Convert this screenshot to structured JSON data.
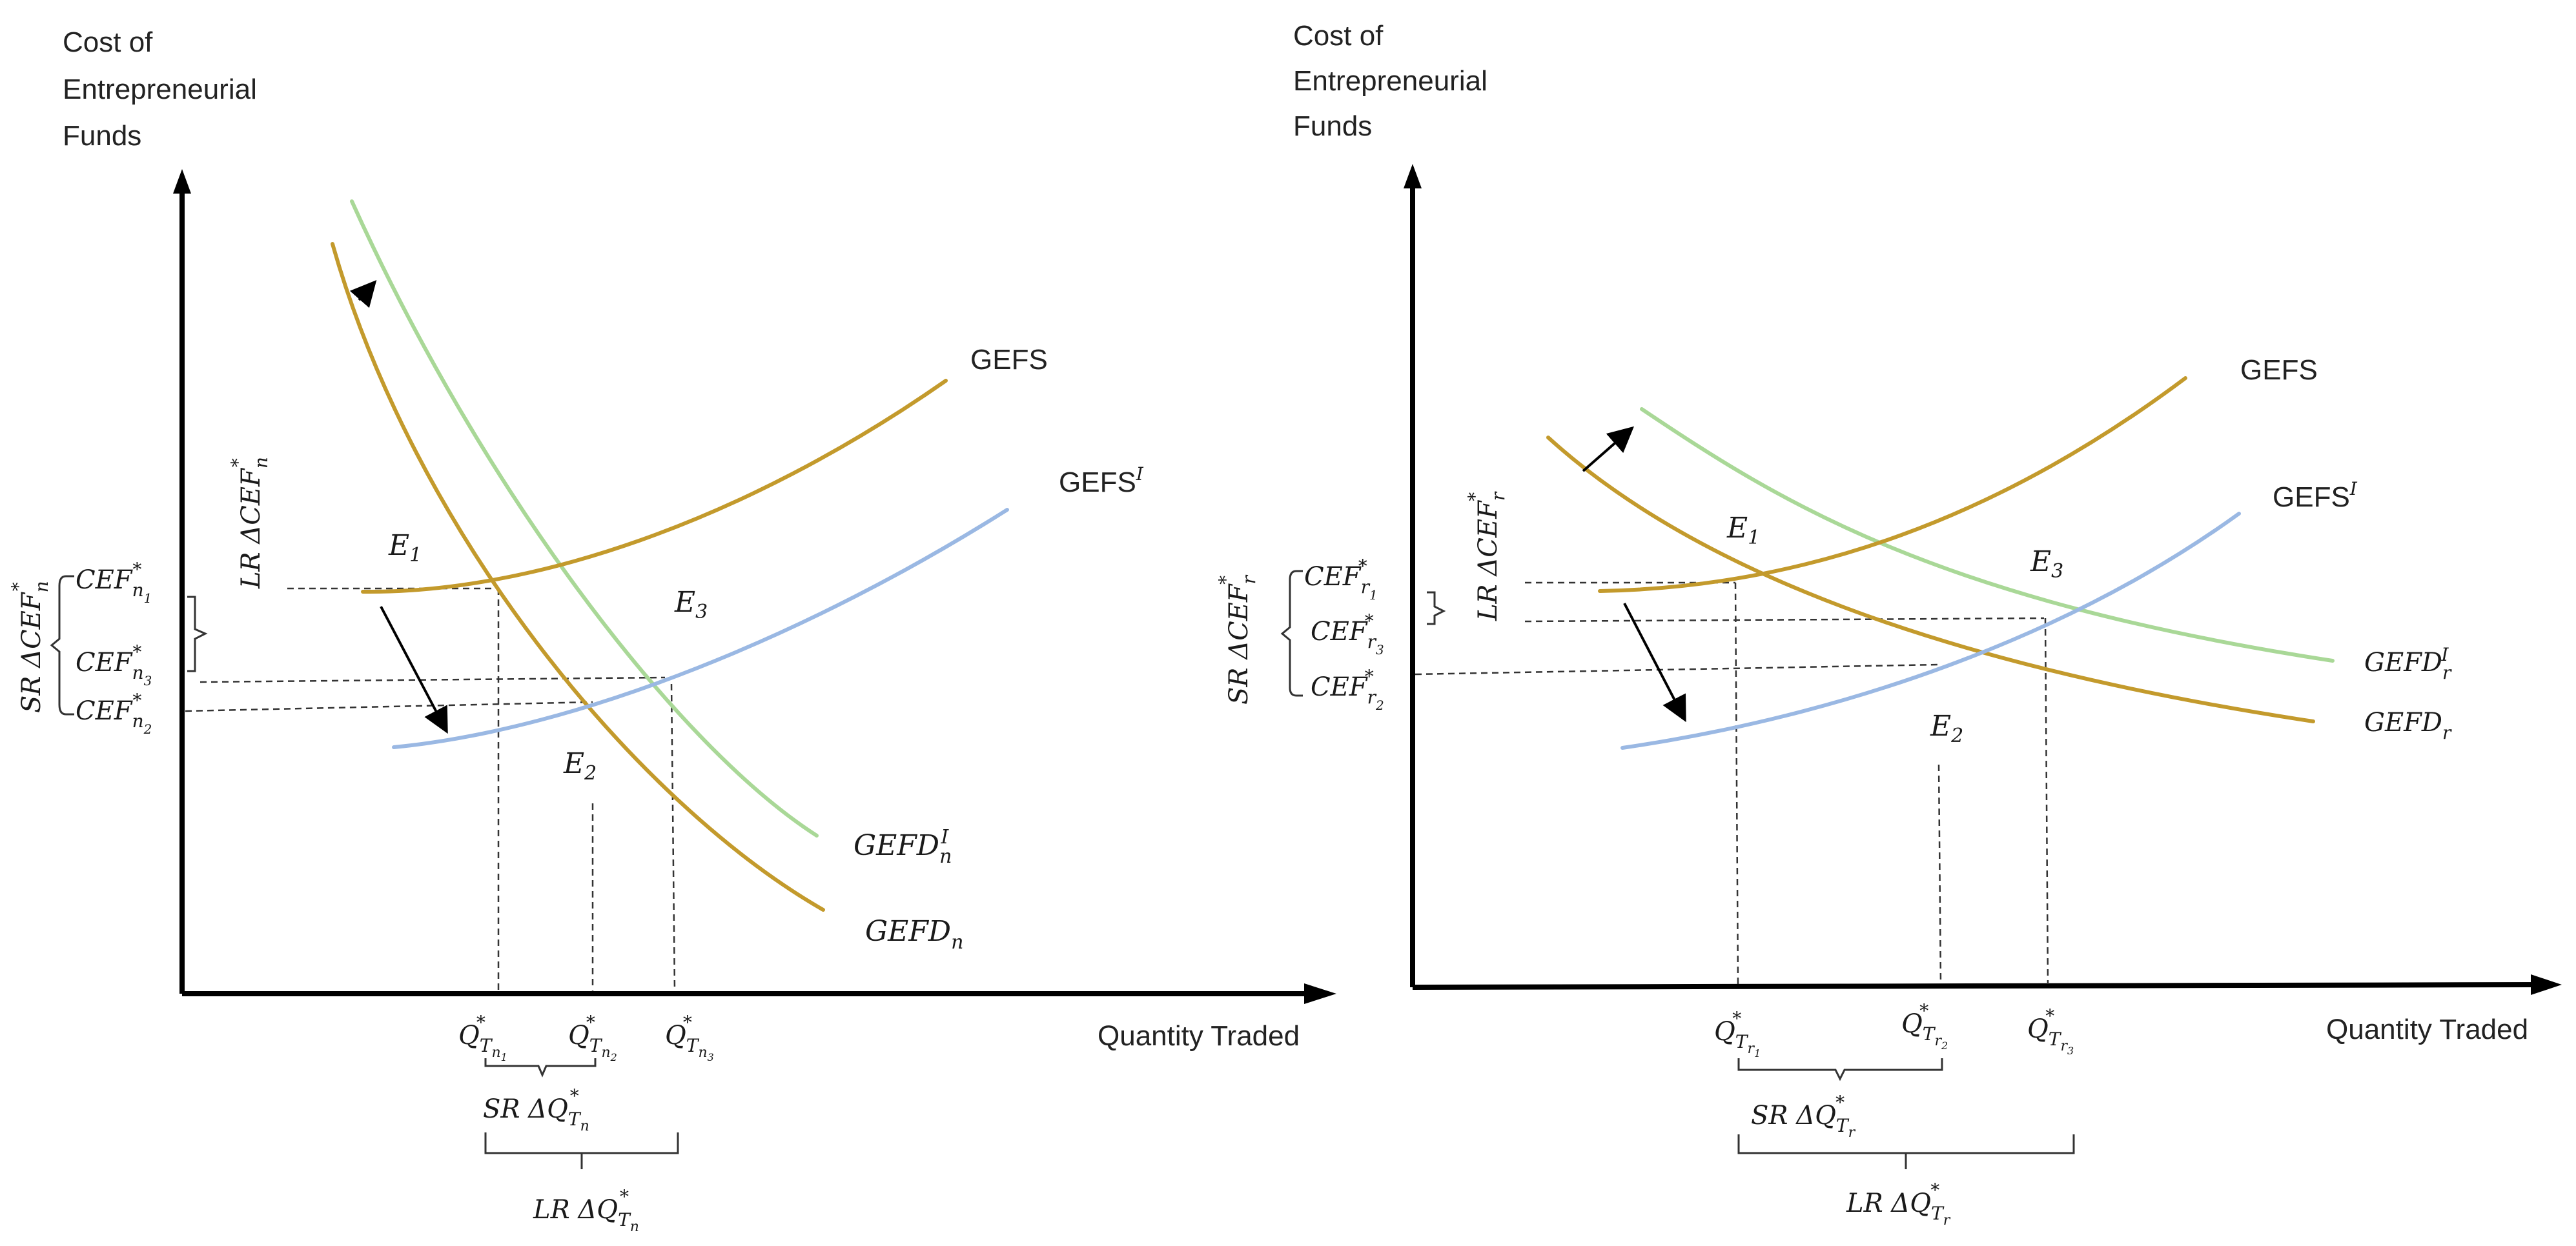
{
  "colors": {
    "supply": "#c39a2c",
    "supply_shifted": "#9ab8e3",
    "demand": "#c39a2c",
    "demand_shifted": "#a9d897",
    "axis": "#000000",
    "text": "#222222"
  },
  "panels": [
    {
      "id": "n",
      "y_axis_label": [
        "Cost of",
        "Entrepreneurial",
        "Funds"
      ],
      "x_axis_label": "Quantity Traded",
      "curves": {
        "gefs": "GEFS",
        "gefs_shifted": "GEFS",
        "gefs_shifted_sup": "I",
        "gefd_shifted": "GEFD",
        "gefd_shifted_sub": "n",
        "gefd_shifted_sup": "I",
        "gefd": "GEFD",
        "gefd_sub": "n"
      },
      "equilibria": {
        "e1": "E",
        "e1_sub": "1",
        "e2": "E",
        "e2_sub": "2",
        "e3": "E",
        "e3_sub": "3"
      },
      "price_labels": [
        {
          "main": "CEF",
          "sub": "n",
          "subsub": "1",
          "sup": "*"
        },
        {
          "main": "CEF",
          "sub": "n",
          "subsub": "3",
          "sup": "*"
        },
        {
          "main": "CEF",
          "sub": "n",
          "subsub": "2",
          "sup": "*"
        }
      ],
      "price_braces": {
        "sr": "SR ΔCEF",
        "sr_sub": "n",
        "sr_sup": "*",
        "lr": "LR ΔCEF",
        "lr_sub": "n",
        "lr_sup": "*"
      },
      "quantity_labels": [
        {
          "main": "Q",
          "sub": "T",
          "subsub": "n",
          "subsubsub": "1",
          "sup": "*"
        },
        {
          "main": "Q",
          "sub": "T",
          "subsub": "n",
          "subsubsub": "2",
          "sup": "*"
        },
        {
          "main": "Q",
          "sub": "T",
          "subsub": "n",
          "subsubsub": "3",
          "sup": "*"
        }
      ],
      "quantity_braces": {
        "sr": "SR ΔQ",
        "sr_sub": "T",
        "sr_subsub": "n",
        "sr_sup": "*",
        "lr": "LR ΔQ",
        "lr_sub": "T",
        "lr_subsub": "n",
        "lr_sup": "*"
      }
    },
    {
      "id": "r",
      "y_axis_label": [
        "Cost of",
        "Entrepreneurial",
        "Funds"
      ],
      "x_axis_label": "Quantity Traded",
      "curves": {
        "gefs": "GEFS",
        "gefs_shifted": "GEFS",
        "gefs_shifted_sup": "I",
        "gefd_shifted": "GEFD",
        "gefd_shifted_sub": "r",
        "gefd_shifted_sup": "I",
        "gefd": "GEFD",
        "gefd_sub": "r"
      },
      "equilibria": {
        "e1": "E",
        "e1_sub": "1",
        "e2": "E",
        "e2_sub": "2",
        "e3": "E",
        "e3_sub": "3"
      },
      "price_labels": [
        {
          "main": "CEF",
          "sub": "r",
          "subsub": "1",
          "sup": "*"
        },
        {
          "main": "CEF",
          "sub": "r",
          "subsub": "3",
          "sup": "*"
        },
        {
          "main": "CEF",
          "sub": "r",
          "subsub": "2",
          "sup": "*"
        }
      ],
      "price_braces": {
        "sr": "SR ΔCEF",
        "sr_sub": "r",
        "sr_sup": "*",
        "lr": "LR ΔCEF",
        "lr_sub": "r",
        "lr_sup": "*"
      },
      "quantity_labels": [
        {
          "main": "Q",
          "sub": "T",
          "subsub": "r",
          "subsubsub": "1",
          "sup": "*"
        },
        {
          "main": "Q",
          "sub": "T",
          "subsub": "r",
          "subsubsub": "2",
          "sup": "*"
        },
        {
          "main": "Q",
          "sub": "T",
          "subsub": "r",
          "subsubsub": "3",
          "sup": "*"
        }
      ],
      "quantity_braces": {
        "sr": "SR ΔQ",
        "sr_sub": "T",
        "sr_subsub": "r",
        "sr_sup": "*",
        "lr": "LR ΔQ",
        "lr_sub": "T",
        "lr_subsub": "r",
        "lr_sup": "*"
      }
    }
  ]
}
